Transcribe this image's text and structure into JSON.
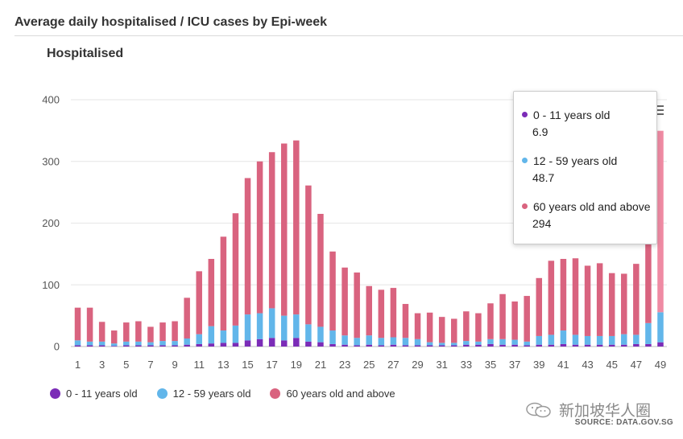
{
  "header": {
    "title": "Average daily hospitalised / ICU cases by Epi-week"
  },
  "chart_title": "Hospitalised",
  "legend": {
    "items": [
      {
        "label": "0 - 11 years old",
        "color": "#7b2cb7"
      },
      {
        "label": "12 - 59 years old",
        "color": "#62b6ea"
      },
      {
        "label": "60 years old and above",
        "color": "#d9637f"
      }
    ]
  },
  "tooltip": {
    "rows": [
      {
        "label": "0 - 11 years old",
        "value": "6.9",
        "color": "#7b2cb7"
      },
      {
        "label": "12 - 59 years old",
        "value": "48.7",
        "color": "#62b6ea"
      },
      {
        "label": "60 years old and above",
        "value": "294",
        "color": "#d9637f"
      }
    ]
  },
  "watermark": {
    "text": "新加坡华人圈",
    "icon": "wechat-icon"
  },
  "source": "SOURCE: DATA.GOV.SG",
  "menu_icon": "hamburger-menu-icon",
  "chart_data": {
    "type": "bar",
    "stacked": true,
    "title": "Hospitalised",
    "xlabel": "",
    "ylabel": "",
    "ylim": [
      0,
      400
    ],
    "yticks": [
      0,
      100,
      200,
      300,
      400
    ],
    "grid": true,
    "legend_position": "bottom",
    "categories": [
      "1",
      "2",
      "3",
      "4",
      "5",
      "6",
      "7",
      "8",
      "9",
      "10",
      "11",
      "12",
      "13",
      "14",
      "15",
      "16",
      "17",
      "18",
      "19",
      "20",
      "21",
      "22",
      "23",
      "24",
      "25",
      "26",
      "27",
      "28",
      "29",
      "30",
      "31",
      "32",
      "33",
      "34",
      "35",
      "36",
      "37",
      "38",
      "39",
      "40",
      "41",
      "42",
      "43",
      "44",
      "45",
      "46",
      "47",
      "48",
      "49"
    ],
    "xtick_labels": [
      "1",
      "3",
      "5",
      "7",
      "9",
      "11",
      "13",
      "15",
      "17",
      "19",
      "21",
      "23",
      "25",
      "27",
      "29",
      "31",
      "33",
      "35",
      "37",
      "39",
      "41",
      "43",
      "45",
      "47",
      "49"
    ],
    "series": [
      {
        "name": "0 - 11 years old",
        "color": "#7b2cb7",
        "values": [
          2,
          2,
          2,
          1,
          2,
          2,
          2,
          2,
          2,
          3,
          4,
          5,
          6,
          6,
          10,
          12,
          14,
          10,
          14,
          8,
          7,
          4,
          3,
          2,
          3,
          2,
          3,
          2,
          2,
          2,
          2,
          2,
          3,
          3,
          4,
          3,
          3,
          2,
          3,
          3,
          4,
          3,
          3,
          3,
          3,
          3,
          4,
          4,
          6.9
        ]
      },
      {
        "name": "12 - 59 years old",
        "color": "#62b6ea",
        "values": [
          8,
          6,
          6,
          4,
          6,
          6,
          5,
          7,
          7,
          10,
          16,
          28,
          20,
          28,
          42,
          42,
          48,
          40,
          38,
          28,
          25,
          22,
          15,
          12,
          15,
          12,
          12,
          12,
          10,
          5,
          4,
          4,
          6,
          5,
          8,
          9,
          8,
          6,
          14,
          16,
          22,
          16,
          14,
          14,
          14,
          17,
          15,
          34,
          48.7
        ]
      },
      {
        "name": "60 years old and above",
        "color": "#d9637f",
        "values": [
          53,
          55,
          32,
          21,
          31,
          33,
          25,
          30,
          32,
          66,
          102,
          109,
          152,
          182,
          221,
          246,
          253,
          279,
          282,
          225,
          183,
          128,
          110,
          106,
          80,
          78,
          80,
          55,
          42,
          48,
          42,
          39,
          48,
          46,
          58,
          73,
          62,
          74,
          94,
          120,
          116,
          124,
          114,
          118,
          102,
          98,
          115,
          160,
          294
        ]
      }
    ]
  }
}
